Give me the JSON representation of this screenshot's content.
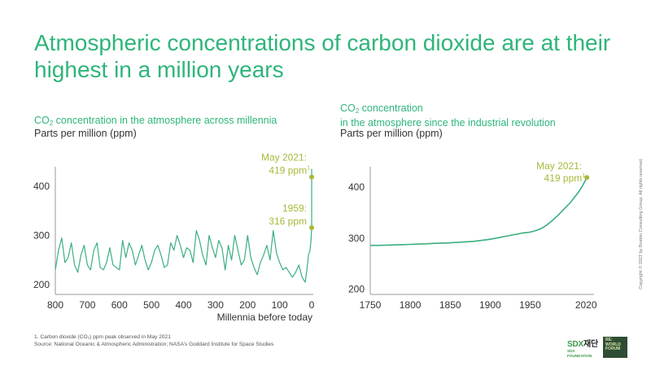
{
  "header": {
    "title": "Atmospheric concentrations of carbon dioxide are at their highest in a million years"
  },
  "footer": {
    "footnote": "1. Carbon dioxide (CO₂) ppm peak observed in May 2021",
    "source": "Source: National Oceanic & Atmospheric Administration; NASA’s Goddard Institute for Space Studies",
    "copyright": "Copyright © 2022 by Boston Consulting Group. All rights reserved."
  },
  "logos": {
    "sdx": {
      "text_a": "SD",
      "text_b": "X",
      "text_c": "재단",
      "sub": "SDX FOUNDATION"
    },
    "rf": {
      "line1": "RE:",
      "line2": "WORLD",
      "line3": "FORUM"
    }
  },
  "colors": {
    "title": "#2eb57a",
    "line": "#3aaf7f",
    "highlight": "#a9b83a",
    "axis": "#9a9a9a",
    "text": "#333333"
  },
  "chart_data": [
    {
      "type": "line",
      "subtitle_pre": "CO",
      "subtitle_sub": "2",
      "subtitle_post": " concentration in the atmosphere across millennia",
      "unit_label": "Parts per million (ppm)",
      "xlabel": "Millennia before today",
      "x_reversed": true,
      "xlim": [
        800,
        0
      ],
      "ylim": [
        180,
        440
      ],
      "xticks": [
        800,
        700,
        600,
        500,
        400,
        300,
        200,
        100,
        0
      ],
      "yticks": [
        200,
        300,
        400
      ],
      "x": [
        800,
        790,
        780,
        770,
        760,
        750,
        740,
        730,
        720,
        710,
        700,
        690,
        680,
        670,
        660,
        650,
        640,
        630,
        620,
        610,
        600,
        590,
        580,
        570,
        560,
        550,
        540,
        530,
        520,
        510,
        500,
        490,
        480,
        470,
        460,
        450,
        440,
        430,
        420,
        410,
        400,
        390,
        380,
        370,
        360,
        350,
        340,
        330,
        320,
        310,
        300,
        290,
        280,
        270,
        260,
        250,
        240,
        230,
        220,
        210,
        200,
        190,
        180,
        170,
        160,
        150,
        140,
        130,
        120,
        110,
        100,
        90,
        80,
        70,
        60,
        50,
        40,
        30,
        20,
        15,
        10,
        5,
        2,
        0
      ],
      "values": [
        230,
        270,
        295,
        245,
        255,
        285,
        240,
        225,
        260,
        280,
        240,
        230,
        270,
        285,
        235,
        230,
        245,
        275,
        240,
        235,
        230,
        290,
        255,
        285,
        270,
        240,
        260,
        280,
        250,
        230,
        245,
        270,
        280,
        260,
        235,
        240,
        285,
        270,
        300,
        280,
        255,
        275,
        270,
        245,
        310,
        290,
        260,
        240,
        300,
        275,
        255,
        290,
        275,
        230,
        280,
        250,
        300,
        270,
        240,
        250,
        300,
        255,
        235,
        220,
        245,
        260,
        280,
        250,
        310,
        265,
        245,
        230,
        235,
        225,
        215,
        225,
        240,
        215,
        205,
        230,
        260,
        270,
        290,
        316
      ],
      "highlight_points": [
        {
          "label_line1": "May 2021:",
          "label_line2": "419 ppm",
          "footnote_mark": "1",
          "y": 419
        },
        {
          "label_line1": "1959:",
          "label_line2": "316 ppm",
          "footnote_mark": "",
          "y": 316
        }
      ]
    },
    {
      "type": "line",
      "subtitle_pre": "CO",
      "subtitle_sub": "2",
      "subtitle_line1_post": " concentration",
      "subtitle_line2": "in the atmosphere since the industrial revolution",
      "unit_label": "Parts per million (ppm)",
      "xlim": [
        1750,
        2030
      ],
      "ylim": [
        190,
        440
      ],
      "xticks": [
        1750,
        1800,
        1850,
        1900,
        1950,
        2020
      ],
      "yticks": [
        200,
        300,
        400
      ],
      "x": [
        1750,
        1760,
        1770,
        1780,
        1790,
        1800,
        1810,
        1820,
        1830,
        1840,
        1850,
        1860,
        1870,
        1880,
        1890,
        1900,
        1910,
        1920,
        1930,
        1940,
        1950,
        1955,
        1959,
        1965,
        1970,
        1975,
        1980,
        1985,
        1990,
        1995,
        2000,
        2005,
        2010,
        2015,
        2021
      ],
      "values": [
        286,
        286,
        286.5,
        287,
        287.5,
        288,
        288.5,
        289,
        290,
        290.5,
        291,
        292,
        293,
        294,
        296,
        298,
        301,
        304,
        307,
        310,
        312,
        314,
        316,
        320,
        325,
        331,
        338,
        345,
        353,
        361,
        369,
        379,
        389,
        401,
        419
      ],
      "highlight_points": [
        {
          "label_line1": "May 2021:",
          "label_line2": "419 ppm",
          "footnote_mark": "1",
          "x": 2021,
          "y": 419
        }
      ]
    }
  ]
}
